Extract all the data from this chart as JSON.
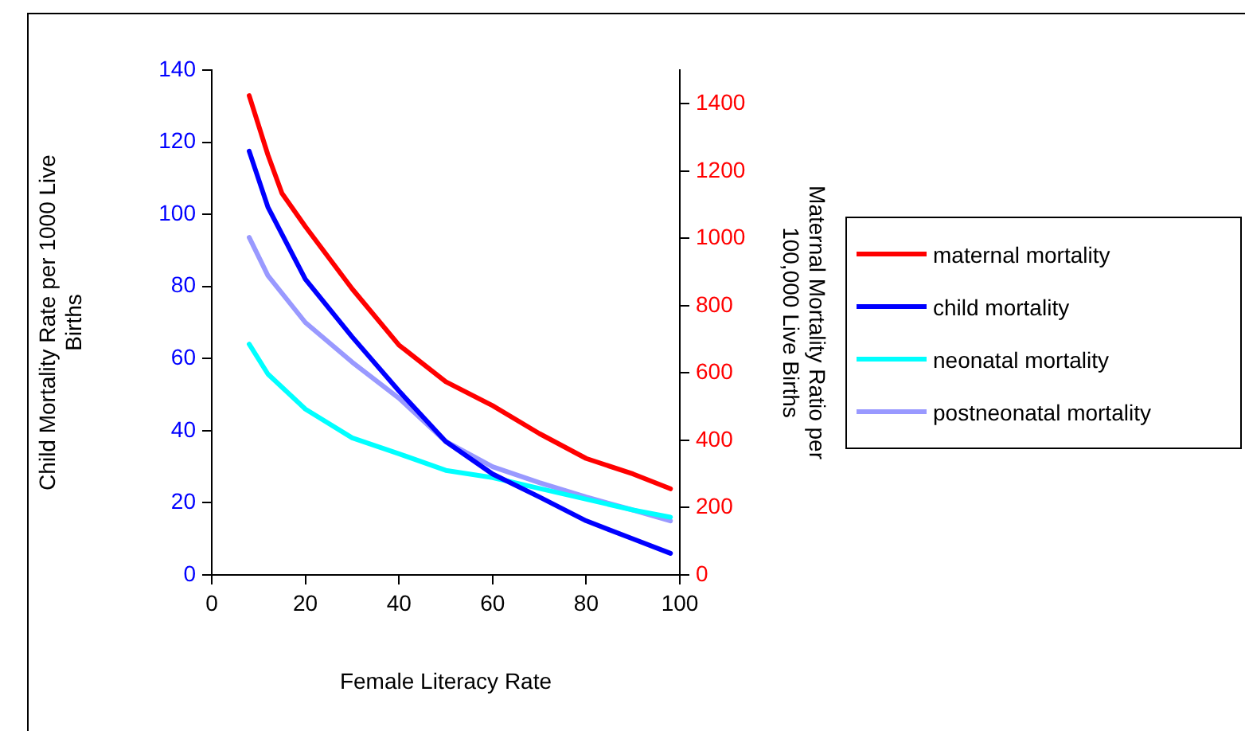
{
  "chart_data": {
    "type": "line",
    "xlabel": "Female Literacy Rate",
    "ylabel": "Child Mortality Rate per 1000 Live Births",
    "y2label": "Maternal Mortality Ratio per 100,000 Live Births",
    "xlim": [
      0,
      100
    ],
    "xticks": [
      0,
      20,
      40,
      60,
      80,
      100
    ],
    "ylim": [
      0,
      140
    ],
    "yticks": [
      0,
      20,
      40,
      60,
      80,
      100,
      120,
      140
    ],
    "y2lim": [
      0,
      1500
    ],
    "y2ticks": [
      0,
      200,
      400,
      600,
      800,
      1000,
      1200,
      1400
    ],
    "grid": false,
    "legend": "right",
    "marker": "none",
    "line_style": "solid",
    "series": [
      {
        "name": "maternal mortality",
        "color": "#ff0000",
        "axis": "y2",
        "x": [
          8,
          12,
          15,
          20,
          30,
          40,
          50,
          60,
          70,
          80,
          90,
          98
        ],
        "values": [
          1424,
          1248,
          1134,
          1035,
          850,
          683,
          574,
          503,
          420,
          346,
          300,
          256
        ]
      },
      {
        "name": "child mortality",
        "color": "#0000ff",
        "x": [
          8,
          12,
          20,
          30,
          40,
          50,
          60,
          70,
          80,
          90,
          98
        ],
        "values": [
          117.5,
          102,
          82,
          66,
          51,
          37,
          28,
          21.6,
          15,
          10,
          6
        ]
      },
      {
        "name": "neonatal mortality",
        "color": "#00ffff",
        "x": [
          8,
          12,
          20,
          30,
          40,
          50,
          60,
          70,
          80,
          90,
          98
        ],
        "values": [
          64,
          55.7,
          46,
          38,
          33.6,
          29,
          27,
          24,
          21,
          18,
          16
        ]
      },
      {
        "name": "postneonatal mortality",
        "color": "#9999ff",
        "x": [
          8,
          12,
          20,
          30,
          40,
          50,
          60,
          70,
          80,
          90,
          98
        ],
        "values": [
          93.6,
          83,
          70,
          59,
          49,
          37,
          30,
          25.6,
          21.6,
          18,
          15
        ]
      }
    ]
  }
}
